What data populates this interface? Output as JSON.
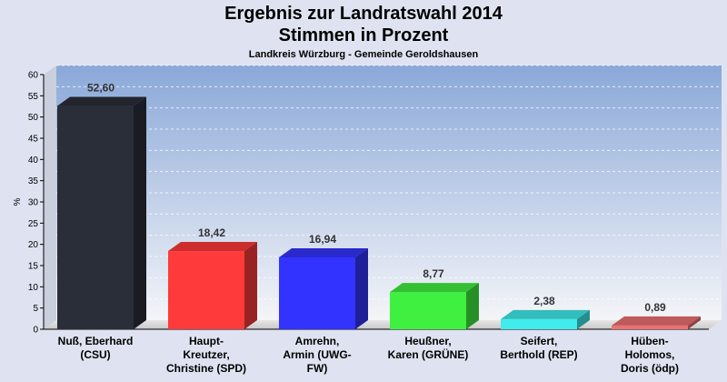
{
  "chart_data": {
    "type": "bar",
    "title": "Ergebnis zur Landratswahl 2014",
    "subtitle": "Stimmen in Prozent",
    "caption": "Landkreis Würzburg - Gemeinde Geroldshausen",
    "ylabel": "%",
    "ylim": [
      0,
      60
    ],
    "yticks": [
      "0",
      "5",
      "10",
      "15",
      "20",
      "25",
      "30",
      "35",
      "40",
      "45",
      "50",
      "55",
      "60"
    ],
    "grid": true,
    "categories": [
      [
        "Nuß, Eberhard",
        "(CSU)"
      ],
      [
        "Haupt-",
        "Kreutzer,",
        "Christine (SPD)"
      ],
      [
        "Amrehn,",
        "Armin (UWG-",
        "FW)"
      ],
      [
        "Heußner,",
        "Karen (GRÜNE)"
      ],
      [
        "Seifert,",
        "Berthold (REP)"
      ],
      [
        "Hüben-",
        "Holomos,",
        "Doris (ödp)"
      ]
    ],
    "values": [
      52.6,
      18.42,
      16.94,
      8.77,
      2.38,
      0.89
    ],
    "value_labels": [
      "52,60",
      "18,42",
      "16,94",
      "8,77",
      "2,38",
      "0,89"
    ],
    "colors": [
      "#2a2e38",
      "#ff3a3a",
      "#3333ff",
      "#40f040",
      "#40ecec",
      "#ee7070"
    ]
  }
}
